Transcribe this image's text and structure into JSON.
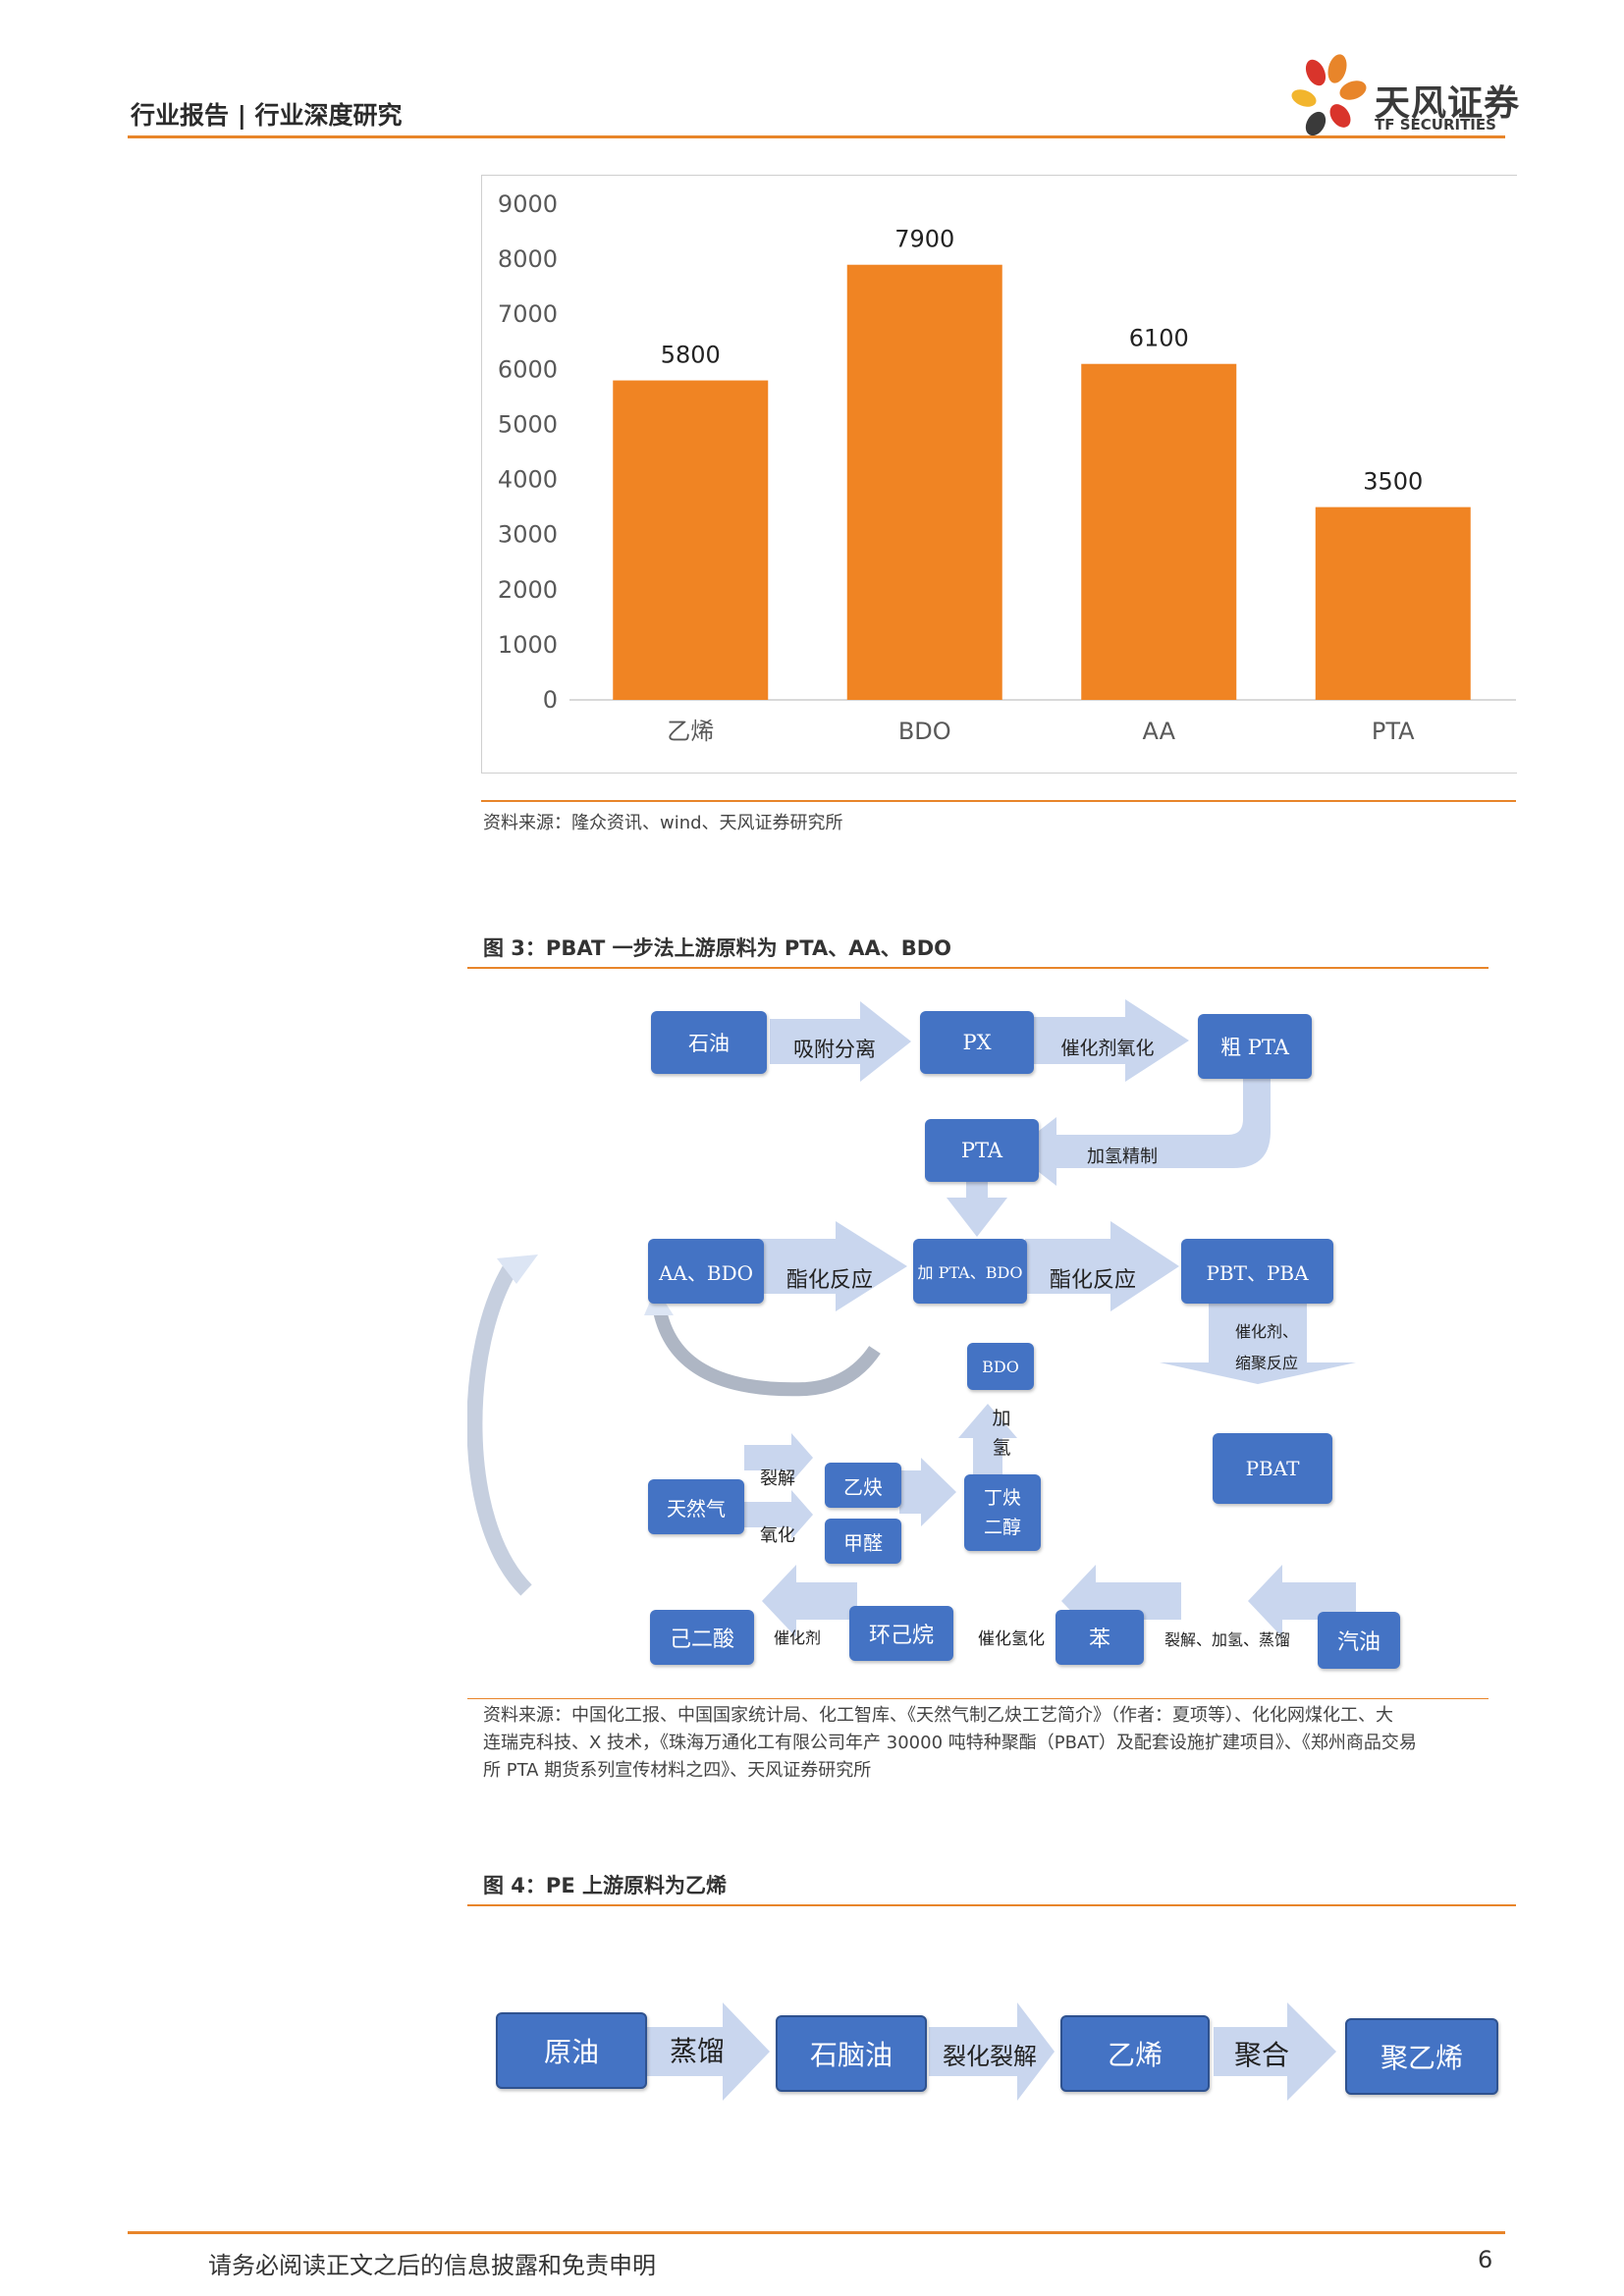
{
  "header": {
    "title": "行业报告 | 行业深度研究"
  },
  "logo": {
    "name": "天风证券",
    "sub": "TF SECURITIES",
    "colors": [
      "#E8852A",
      "#D9342B",
      "#F2B52D",
      "#3A3A3A"
    ]
  },
  "chart_data": {
    "type": "bar",
    "categories": [
      "乙烯",
      "BDO",
      "AA",
      "PTA"
    ],
    "values": [
      5800,
      7900,
      6100,
      3500
    ],
    "ylim": [
      0,
      9000
    ],
    "yticks": [
      0,
      1000,
      2000,
      3000,
      4000,
      5000,
      6000,
      7000,
      8000,
      9000
    ],
    "bar_color": "#F08423",
    "grid": false
  },
  "chart_source": "资料来源：隆众资讯、wind、天风证券研究所",
  "fig3": {
    "title": "图 3：PBAT 一步法上游原料为 PTA、AA、BDO",
    "boxes": {
      "oil": "石油",
      "px": "PX",
      "crude_pta": "粗 PTA",
      "pta": "PTA",
      "aa_bdo": "AA、BDO",
      "add_pta_bdo": "加 PTA、BDO",
      "pbt_pba": "PBT、PBA",
      "bdo": "BDO",
      "pbat": "PBAT",
      "natural_gas": "天然气",
      "acetylene": "乙炔",
      "formaldehyde": "甲醛",
      "butynediol_1": "丁炔",
      "butynediol_2": "二醇",
      "adipic_acid": "己二酸",
      "cyclohexane": "环己烷",
      "benzene": "苯",
      "gasoline": "汽油"
    },
    "arrows": {
      "adsorption": "吸附分离",
      "catalytic_oxidation": "催化剂氧化",
      "hydro_refine": "加氢精制",
      "esterification_1": "酯化反应",
      "esterification_2": "酯化反应",
      "polycondensation_1": "催化剂、",
      "polycondensation_2": "缩聚反应",
      "hydrogenation_1": "加",
      "hydrogenation_2": "氢",
      "cracking": "裂解",
      "oxidation": "氧化",
      "catalyst": "催化剂",
      "catalytic_hydrogenation": "催化氢化",
      "crack_hydro_distill": "裂解、加氢、蒸馏"
    },
    "source_lines": [
      "资料来源：中国化工报、中国国家统计局、化工智库、《天然气制乙炔工艺简介》（作者：夏项等）、化化网煤化工、大",
      "连瑞克科技、X 技术，《珠海万通化工有限公司年产 30000 吨特种聚酯（PBAT）及配套设施扩建项目》、《郑州商品交易",
      "所 PTA 期货系列宣传材料之四》、天风证券研究所"
    ]
  },
  "fig4": {
    "title": "图 4：PE 上游原料为乙烯",
    "boxes": [
      "原油",
      "石脑油",
      "乙烯",
      "聚乙烯"
    ],
    "arrows": [
      "蒸馏",
      "裂化裂解",
      "聚合"
    ]
  },
  "footer": {
    "disclaimer": "请务必阅读正文之后的信息披露和免责申明",
    "page": "6"
  }
}
